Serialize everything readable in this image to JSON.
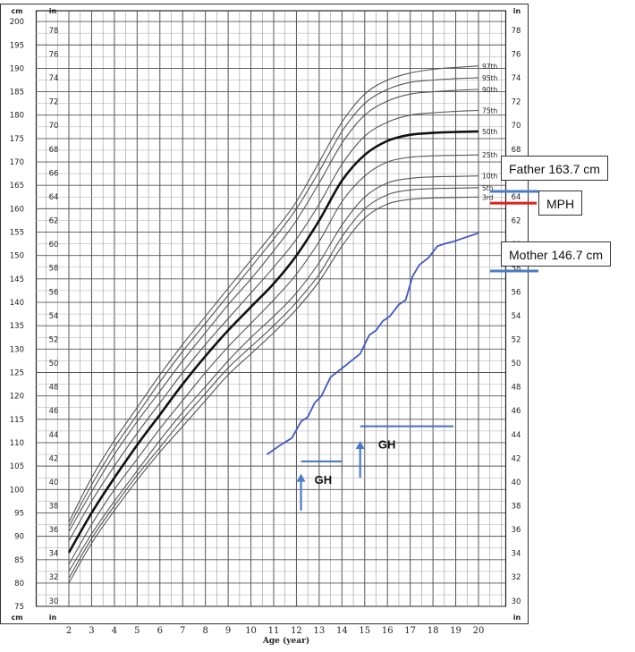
{
  "chart_data": {
    "type": "line",
    "title": "",
    "xlabel": "Age (year)",
    "ylabel_left": "cm",
    "ylabel_right": "in",
    "x_unit_label": "in",
    "xlim": [
      2,
      20
    ],
    "ylim_cm": [
      75,
      200
    ],
    "ylim_in": [
      30,
      78
    ],
    "x_ticks": [
      2,
      3,
      4,
      5,
      6,
      7,
      8,
      9,
      10,
      11,
      12,
      13,
      14,
      15,
      16,
      17,
      18,
      19,
      20
    ],
    "cm_ticks": [
      75,
      80,
      85,
      90,
      95,
      100,
      105,
      110,
      115,
      120,
      125,
      130,
      135,
      140,
      145,
      150,
      155,
      160,
      165,
      170,
      175,
      180,
      185,
      190,
      195,
      200
    ],
    "in_ticks": [
      30,
      32,
      34,
      36,
      38,
      40,
      42,
      44,
      46,
      48,
      50,
      52,
      54,
      56,
      58,
      60,
      62,
      64,
      66,
      68,
      70,
      72,
      74,
      76,
      78
    ],
    "grid": true,
    "percentile_curves": [
      {
        "name": "97th",
        "label_y_cm": 190.5,
        "points": [
          [
            2,
            93
          ],
          [
            3,
            102.5
          ],
          [
            4,
            110.5
          ],
          [
            5,
            117.5
          ],
          [
            6,
            124.5
          ],
          [
            7,
            131
          ],
          [
            8,
            137
          ],
          [
            9,
            143
          ],
          [
            10,
            149
          ],
          [
            11,
            155
          ],
          [
            12,
            161.5
          ],
          [
            13,
            170
          ],
          [
            14,
            178.5
          ],
          [
            15,
            184.5
          ],
          [
            16,
            187.5
          ],
          [
            17,
            189
          ],
          [
            18,
            189.8
          ],
          [
            19,
            190.2
          ],
          [
            20,
            190.5
          ]
        ]
      },
      {
        "name": "95th",
        "label_y_cm": 188,
        "points": [
          [
            2,
            92
          ],
          [
            3,
            101
          ],
          [
            4,
            109
          ],
          [
            5,
            116
          ],
          [
            6,
            123
          ],
          [
            7,
            129.5
          ],
          [
            8,
            135.5
          ],
          [
            9,
            141.5
          ],
          [
            10,
            147.5
          ],
          [
            11,
            153.5
          ],
          [
            12,
            160
          ],
          [
            13,
            168
          ],
          [
            14,
            176.5
          ],
          [
            15,
            182.5
          ],
          [
            16,
            185.5
          ],
          [
            17,
            187
          ],
          [
            18,
            187.5
          ],
          [
            19,
            187.8
          ],
          [
            20,
            188
          ]
        ]
      },
      {
        "name": "90th",
        "label_y_cm": 185.5,
        "points": [
          [
            2,
            91
          ],
          [
            3,
            99.5
          ],
          [
            4,
            107.5
          ],
          [
            5,
            114.5
          ],
          [
            6,
            121
          ],
          [
            7,
            127.5
          ],
          [
            8,
            133.5
          ],
          [
            9,
            139.5
          ],
          [
            10,
            145
          ],
          [
            11,
            151
          ],
          [
            12,
            157.5
          ],
          [
            13,
            165.5
          ],
          [
            14,
            174
          ],
          [
            15,
            180
          ],
          [
            16,
            183
          ],
          [
            17,
            184.5
          ],
          [
            18,
            185
          ],
          [
            19,
            185.3
          ],
          [
            20,
            185.5
          ]
        ]
      },
      {
        "name": "75th",
        "label_y_cm": 181,
        "points": [
          [
            2,
            89
          ],
          [
            3,
            97.5
          ],
          [
            4,
            105
          ],
          [
            5,
            112
          ],
          [
            6,
            118.5
          ],
          [
            7,
            125
          ],
          [
            8,
            131
          ],
          [
            9,
            136.5
          ],
          [
            10,
            142
          ],
          [
            11,
            147.5
          ],
          [
            12,
            153.5
          ],
          [
            13,
            161
          ],
          [
            14,
            169.5
          ],
          [
            15,
            175.5
          ],
          [
            16,
            178.5
          ],
          [
            17,
            180
          ],
          [
            18,
            180.5
          ],
          [
            19,
            180.8
          ],
          [
            20,
            181
          ]
        ]
      },
      {
        "name": "50th",
        "label_y_cm": 176.5,
        "bold": true,
        "points": [
          [
            2,
            86.5
          ],
          [
            3,
            95
          ],
          [
            4,
            102.5
          ],
          [
            5,
            109.5
          ],
          [
            6,
            116
          ],
          [
            7,
            122.5
          ],
          [
            8,
            128.5
          ],
          [
            9,
            134
          ],
          [
            10,
            139
          ],
          [
            11,
            144
          ],
          [
            12,
            150
          ],
          [
            13,
            157.5
          ],
          [
            14,
            166
          ],
          [
            15,
            171.5
          ],
          [
            16,
            174.5
          ],
          [
            17,
            175.8
          ],
          [
            18,
            176.2
          ],
          [
            19,
            176.4
          ],
          [
            20,
            176.5
          ]
        ]
      },
      {
        "name": "25th",
        "label_y_cm": 171.5,
        "points": [
          [
            2,
            84
          ],
          [
            3,
            92.5
          ],
          [
            4,
            100
          ],
          [
            5,
            106.5
          ],
          [
            6,
            113
          ],
          [
            7,
            119
          ],
          [
            8,
            125
          ],
          [
            9,
            130.5
          ],
          [
            10,
            135.5
          ],
          [
            11,
            140.5
          ],
          [
            12,
            146
          ],
          [
            13,
            153
          ],
          [
            14,
            161.5
          ],
          [
            15,
            167
          ],
          [
            16,
            170
          ],
          [
            17,
            171
          ],
          [
            18,
            171.3
          ],
          [
            19,
            171.4
          ],
          [
            20,
            171.5
          ]
        ]
      },
      {
        "name": "10th",
        "label_y_cm": 167,
        "points": [
          [
            2,
            82.5
          ],
          [
            3,
            90.5
          ],
          [
            4,
            97.5
          ],
          [
            5,
            104
          ],
          [
            6,
            110.5
          ],
          [
            7,
            116.5
          ],
          [
            8,
            122
          ],
          [
            9,
            127.5
          ],
          [
            10,
            132.5
          ],
          [
            11,
            137
          ],
          [
            12,
            142
          ],
          [
            13,
            148.5
          ],
          [
            14,
            156.5
          ],
          [
            15,
            162.5
          ],
          [
            16,
            165.5
          ],
          [
            17,
            166.5
          ],
          [
            18,
            166.8
          ],
          [
            19,
            166.9
          ],
          [
            20,
            167
          ]
        ]
      },
      {
        "name": "5th",
        "label_y_cm": 164.5,
        "points": [
          [
            2,
            81
          ],
          [
            3,
            89.5
          ],
          [
            4,
            96.5
          ],
          [
            5,
            103
          ],
          [
            6,
            109
          ],
          [
            7,
            115
          ],
          [
            8,
            120.5
          ],
          [
            9,
            126
          ],
          [
            10,
            130.5
          ],
          [
            11,
            135
          ],
          [
            12,
            140
          ],
          [
            13,
            146
          ],
          [
            14,
            154
          ],
          [
            15,
            160
          ],
          [
            16,
            163
          ],
          [
            17,
            164
          ],
          [
            18,
            164.3
          ],
          [
            19,
            164.4
          ],
          [
            20,
            164.5
          ]
        ]
      },
      {
        "name": "3rd",
        "label_y_cm": 162.5,
        "points": [
          [
            2,
            80
          ],
          [
            3,
            88.5
          ],
          [
            4,
            95.5
          ],
          [
            5,
            102
          ],
          [
            6,
            108
          ],
          [
            7,
            113.5
          ],
          [
            8,
            119
          ],
          [
            9,
            124.5
          ],
          [
            10,
            129
          ],
          [
            11,
            133.5
          ],
          [
            12,
            138.5
          ],
          [
            13,
            144.5
          ],
          [
            14,
            152
          ],
          [
            15,
            158
          ],
          [
            16,
            161
          ],
          [
            17,
            162
          ],
          [
            18,
            162.3
          ],
          [
            19,
            162.4
          ],
          [
            20,
            162.5
          ]
        ]
      }
    ],
    "patient_series": {
      "name": "",
      "color": "#4257c4",
      "points": [
        [
          10.7,
          107.5
        ],
        [
          11.3,
          109.5
        ],
        [
          11.8,
          111
        ],
        [
          12.2,
          114.5
        ],
        [
          12.5,
          115.5
        ],
        [
          12.8,
          118.5
        ],
        [
          13.1,
          120
        ],
        [
          13.5,
          124
        ],
        [
          13.9,
          125.5
        ],
        [
          14.8,
          129
        ],
        [
          15.2,
          133
        ],
        [
          15.5,
          134
        ],
        [
          15.8,
          136
        ],
        [
          16.1,
          137
        ],
        [
          16.5,
          139.5
        ],
        [
          16.8,
          140.5
        ],
        [
          17.1,
          145.5
        ],
        [
          17.4,
          148
        ],
        [
          17.8,
          149.5
        ],
        [
          18.2,
          152
        ],
        [
          18.5,
          152.5
        ],
        [
          18.9,
          153
        ],
        [
          19.5,
          154
        ],
        [
          20,
          154.8
        ]
      ]
    },
    "gh_marks": [
      {
        "label": "GH",
        "arrow_x": 12.2,
        "arrow_cm": [
          95.5,
          103
        ],
        "bar_x": [
          12.2,
          14
        ],
        "bar_cm": 106
      },
      {
        "label": "GH",
        "arrow_x": 14.8,
        "arrow_cm": [
          102.5,
          110
        ],
        "bar_x": [
          14.8,
          18.9
        ],
        "bar_cm": 113.5
      }
    ],
    "parent_markers": [
      {
        "label": "Father 163.7 cm",
        "value_cm": 163.7,
        "color": "#4a7bc8"
      },
      {
        "label": "MPH",
        "value_cm": 161.2,
        "color": "#e0201b"
      },
      {
        "label": "Mother 146.7 cm",
        "value_cm": 146.7,
        "color": "#4a7bc8"
      }
    ]
  }
}
